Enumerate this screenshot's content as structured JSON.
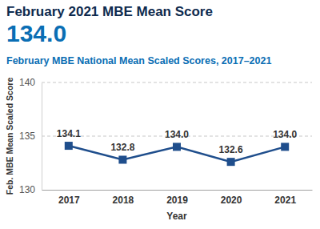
{
  "chart_data": {
    "type": "line",
    "annotations": [
      "February 2021 MBE Mean Score",
      "134.0"
    ],
    "title": "February MBE National Mean Scaled Scores, 2017–2021",
    "x_label": "Year",
    "y_label": "Feb. MBE Mean Scaled Score",
    "categories": [
      "2017",
      "2018",
      "2019",
      "2020",
      "2021"
    ],
    "values": [
      134.1,
      132.8,
      134.0,
      132.6,
      134.0
    ],
    "value_labels": [
      "134.1",
      "132.8",
      "134.0",
      "132.6",
      "134.0"
    ],
    "color": "#1f4e8c",
    "marker": "square",
    "ylim": [
      130,
      140
    ],
    "yticks": [
      130,
      135,
      140
    ],
    "grid": true,
    "data_labels": true
  }
}
